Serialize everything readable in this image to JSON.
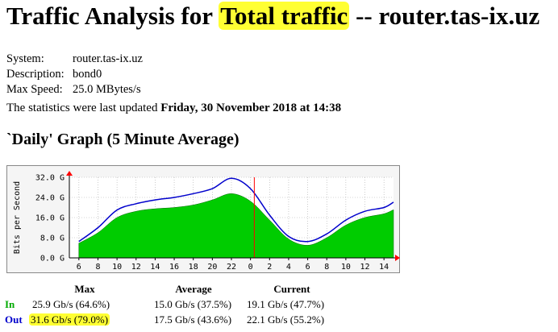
{
  "title": {
    "prefix": "Traffic Analysis for ",
    "highlight": "Total traffic",
    "suffix": " -- router.tas-ix.uz"
  },
  "info": [
    {
      "key": "System:",
      "value": "router.tas-ix.uz"
    },
    {
      "key": "Description:",
      "value": "bond0"
    },
    {
      "key": "Max Speed:",
      "value": "25.0 MBytes/s"
    }
  ],
  "updated": {
    "prefix": "The statistics were last updated ",
    "value": "Friday, 30 November 2018 at 14:38"
  },
  "graph_title": "`Daily' Graph (5 Minute Average)",
  "stats": {
    "headers": [
      "Max",
      "Average",
      "Current"
    ],
    "rows": [
      {
        "label": "In",
        "max": "25.9 Gb/s (64.6%)",
        "average": "15.0 Gb/s (37.5%)",
        "current": "19.1 Gb/s (47.7%)"
      },
      {
        "label": "Out",
        "max": "31.6 Gb/s (79.0%)",
        "average": "17.5 Gb/s (43.6%)",
        "current": "22.1 Gb/s (55.2%)"
      }
    ]
  },
  "colors": {
    "in_fill": "#00cc00",
    "in_edge": "#006600",
    "out_line": "#0000cc",
    "now_marker": "#ff0000",
    "grid": "#aaaaaa",
    "plot_bg": "#ffffff",
    "frame_bg": "#f5f5f5",
    "highlight": "#ffff33"
  },
  "chart_data": {
    "type": "area",
    "ylabel": "Bits per Second",
    "yticks": [
      "0.0 G",
      "8.0 G",
      "16.0 G",
      "24.0 G",
      "32.0 G"
    ],
    "ylim": [
      0,
      32
    ],
    "xticks": [
      "6",
      "8",
      "10",
      "12",
      "14",
      "16",
      "18",
      "20",
      "22",
      "0",
      "2",
      "4",
      "6",
      "8",
      "10",
      "12",
      "14"
    ],
    "x_hours_ago": [
      33,
      31,
      29,
      27,
      25,
      23,
      21,
      19,
      17,
      15,
      13,
      11,
      9,
      7,
      5,
      3,
      1,
      0
    ],
    "xlim_hours_ago": [
      34,
      0
    ],
    "now_marker_hours_ago": 14.6,
    "grid": true,
    "series": [
      {
        "name": "In",
        "values": [
          5.8,
          10.0,
          16.0,
          18.5,
          19.5,
          20.0,
          21.0,
          23.0,
          25.5,
          22.5,
          15.0,
          7.5,
          5.0,
          8.0,
          13.0,
          16.0,
          17.5,
          19.1
        ]
      },
      {
        "name": "Out",
        "values": [
          6.5,
          12.0,
          19.0,
          21.5,
          23.0,
          24.0,
          25.5,
          27.5,
          31.6,
          27.5,
          17.0,
          8.5,
          6.5,
          9.5,
          15.0,
          18.5,
          20.0,
          22.1
        ]
      }
    ]
  }
}
